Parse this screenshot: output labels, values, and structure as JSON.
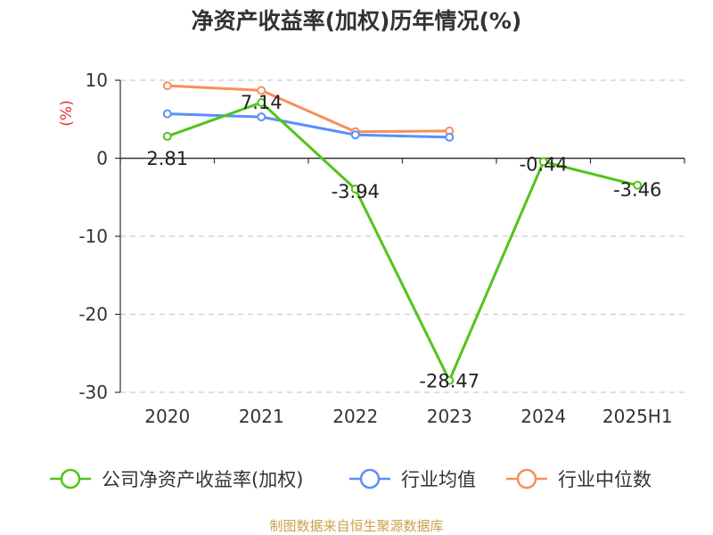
{
  "chart_data": {
    "type": "line",
    "title": "净资产收益率(加权)历年情况(%)",
    "ylabel": "(%)",
    "categories": [
      "2020",
      "2021",
      "2022",
      "2023",
      "2024",
      "2025H1"
    ],
    "yticks": [
      "10",
      "0",
      "-10",
      "-20",
      "-30"
    ],
    "ylim": [
      -30,
      10
    ],
    "grid": true,
    "legend_position": "bottom",
    "series": [
      {
        "name": "公司净资产收益率(加权)",
        "values": [
          2.81,
          7.14,
          -3.94,
          -28.47,
          -0.44,
          -3.46
        ],
        "labels": [
          "2.81",
          "7.14",
          "-3.94",
          "-28.47",
          "-0.44",
          "-3.46"
        ],
        "color": "#52c41a"
      },
      {
        "name": "行业均值",
        "values": [
          5.7,
          5.3,
          3.0,
          2.7,
          null,
          null
        ],
        "color": "#5b8ff9"
      },
      {
        "name": "行业中位数",
        "values": [
          9.3,
          8.7,
          3.4,
          3.5,
          null,
          null
        ],
        "color": "#f6905a"
      }
    ]
  },
  "source_note": "制图数据来自恒生聚源数据库",
  "colors": {
    "axis": "#333333",
    "grid": "#cccccc",
    "ylabel": "#e0312b",
    "source": "#c9a24a"
  }
}
